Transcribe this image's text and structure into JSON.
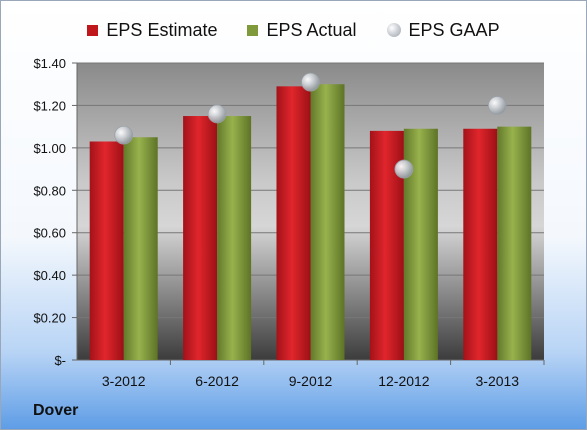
{
  "legend": {
    "estimate": "EPS Estimate",
    "actual": "EPS Actual",
    "gaap": "EPS GAAP"
  },
  "company": "Dover",
  "colors": {
    "estimate": "#c0171d",
    "actual": "#7f9a3a",
    "gaap": "#b9bec4"
  },
  "chart_data": {
    "type": "bar",
    "categories": [
      "3-2012",
      "6-2012",
      "9-2012",
      "12-2012",
      "3-2013"
    ],
    "series": [
      {
        "name": "EPS Estimate",
        "values": [
          1.03,
          1.15,
          1.29,
          1.08,
          1.09
        ]
      },
      {
        "name": "EPS Actual",
        "values": [
          1.05,
          1.15,
          1.3,
          1.09,
          1.1
        ]
      },
      {
        "name": "EPS GAAP",
        "values": [
          1.06,
          1.16,
          1.31,
          0.9,
          1.2
        ],
        "marker": "circle"
      }
    ],
    "ylim": [
      0,
      1.4
    ],
    "yticks": [
      0,
      0.2,
      0.4,
      0.6,
      0.8,
      1.0,
      1.2,
      1.4
    ],
    "ytick_labels": [
      "$-",
      "$0.20",
      "$0.40",
      "$0.60",
      "$0.80",
      "$1.00",
      "$1.20",
      "$1.40"
    ],
    "grid": true,
    "legend_position": "top"
  }
}
